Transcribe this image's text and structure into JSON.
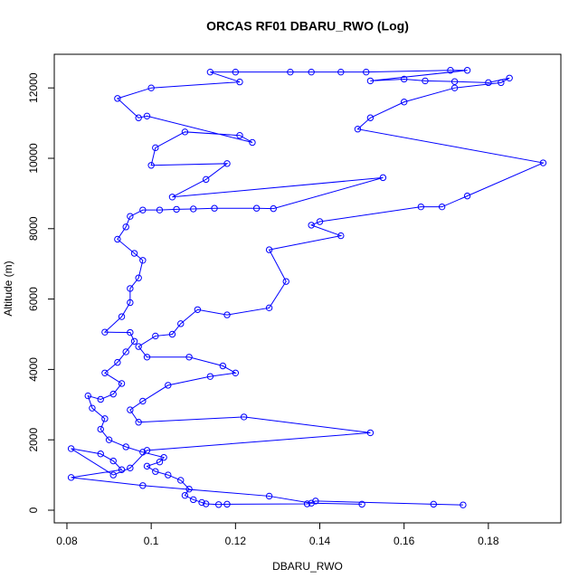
{
  "chart_data": {
    "type": "line",
    "title": "ORCAS RF01 DBARU_RWO (Log)",
    "x_label": "DBARU_RWO",
    "y_label": "Altitude (m)",
    "x": [
      0.174,
      0.167,
      0.139,
      0.137,
      0.118,
      0.116,
      0.113,
      0.112,
      0.11,
      0.108,
      0.109,
      0.107,
      0.104,
      0.101,
      0.099,
      0.102,
      0.103,
      0.098,
      0.094,
      0.09,
      0.088,
      0.089,
      0.086,
      0.085,
      0.088,
      0.091,
      0.093,
      0.089,
      0.092,
      0.094,
      0.096,
      0.095,
      0.089,
      0.093,
      0.095,
      0.095,
      0.097,
      0.098,
      0.096,
      0.092,
      0.094,
      0.095,
      0.098,
      0.102,
      0.106,
      0.11,
      0.115,
      0.125,
      0.129,
      0.155,
      0.105,
      0.113,
      0.118,
      0.1,
      0.101,
      0.108,
      0.121,
      0.124,
      0.099,
      0.097,
      0.092,
      0.1,
      0.121,
      0.114,
      0.12,
      0.133,
      0.138,
      0.145,
      0.151,
      0.171,
      0.175,
      0.152,
      0.16,
      0.165,
      0.172,
      0.18,
      0.185,
      0.183,
      0.172,
      0.16,
      0.152,
      0.149,
      0.193,
      0.175,
      0.169,
      0.164,
      0.14,
      0.138,
      0.145,
      0.128,
      0.132,
      0.128,
      0.118,
      0.111,
      0.107,
      0.105,
      0.101,
      0.097,
      0.099,
      0.109,
      0.117,
      0.12,
      0.114,
      0.104,
      0.098,
      0.095,
      0.097,
      0.122,
      0.152,
      0.099,
      0.095,
      0.091,
      0.081,
      0.088,
      0.091,
      0.093,
      0.081,
      0.098,
      0.128,
      0.138,
      0.15
    ],
    "series": [
      {
        "color": "#0000ff",
        "values": [
          150,
          170,
          260,
          180,
          170,
          160,
          180,
          220,
          300,
          420,
          600,
          850,
          1000,
          1100,
          1250,
          1370,
          1500,
          1650,
          1800,
          2000,
          2300,
          2600,
          2900,
          3250,
          3150,
          3300,
          3600,
          3900,
          4200,
          4500,
          4800,
          5050,
          5060,
          5500,
          5900,
          6300,
          6600,
          7100,
          7300,
          7700,
          8050,
          8350,
          8530,
          8530,
          8550,
          8560,
          8580,
          8580,
          8570,
          9450,
          8900,
          9400,
          9850,
          9800,
          10300,
          10750,
          10650,
          10450,
          11200,
          11150,
          11700,
          12000,
          12170,
          12450,
          12450,
          12450,
          12450,
          12450,
          12450,
          12500,
          12500,
          12200,
          12250,
          12200,
          12180,
          12150,
          12280,
          12150,
          12000,
          11600,
          11150,
          10830,
          9870,
          8930,
          8620,
          8620,
          8200,
          8100,
          7800,
          7400,
          6500,
          5750,
          5550,
          5700,
          5300,
          5000,
          4950,
          4650,
          4350,
          4350,
          4100,
          3900,
          3800,
          3550,
          3100,
          2850,
          2500,
          2650,
          2200,
          1700,
          1200,
          1000,
          1750,
          1600,
          1400,
          1150,
          930,
          700,
          400,
          200,
          170
        ]
      }
    ],
    "xlim": [
      0.077,
      0.1972
    ],
    "ylim": [
      -360,
      12956
    ],
    "xticks": [
      0.08,
      0.1,
      0.12,
      0.14,
      0.16,
      0.18
    ],
    "yticks": [
      0,
      2000,
      4000,
      6000,
      8000,
      10000,
      12000
    ]
  }
}
